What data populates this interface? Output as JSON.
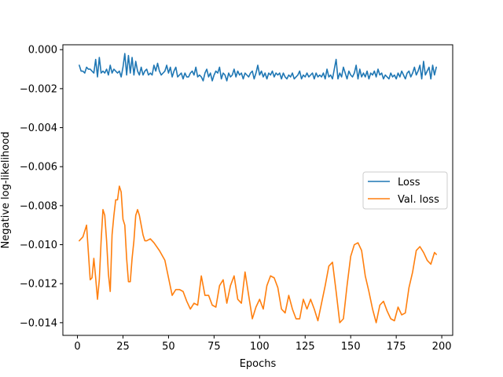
{
  "chart_data": {
    "type": "line",
    "xlabel": "Epochs",
    "ylabel": "Negative log-likelihood",
    "xlim": [
      -8,
      206
    ],
    "ylim": [
      -0.01465,
      0.00025
    ],
    "xticks": [
      0,
      25,
      50,
      75,
      100,
      125,
      150,
      175,
      200
    ],
    "xtick_labels": [
      "0",
      "25",
      "50",
      "75",
      "100",
      "125",
      "150",
      "175",
      "200"
    ],
    "yticks": [
      0.0,
      -0.002,
      -0.004,
      -0.006,
      -0.008,
      -0.01,
      -0.012,
      -0.014
    ],
    "ytick_labels": [
      "0.000",
      "−0.002",
      "−0.004",
      "−0.006",
      "−0.008",
      "−0.010",
      "−0.012",
      "−0.014"
    ],
    "grid": false,
    "legend": {
      "position": "center-right"
    },
    "series": [
      {
        "name": "Loss",
        "color": "#1f77b4",
        "x": [
          1,
          2,
          3,
          4,
          5,
          6,
          7,
          8,
          9,
          10,
          11,
          12,
          13,
          14,
          15,
          16,
          17,
          18,
          19,
          20,
          21,
          22,
          23,
          24,
          25,
          26,
          27,
          28,
          29,
          30,
          31,
          32,
          33,
          34,
          35,
          36,
          37,
          38,
          39,
          40,
          41,
          42,
          43,
          44,
          45,
          46,
          47,
          48,
          49,
          50,
          51,
          52,
          53,
          54,
          55,
          56,
          57,
          58,
          59,
          60,
          61,
          62,
          63,
          64,
          65,
          66,
          67,
          68,
          69,
          70,
          71,
          72,
          73,
          74,
          75,
          76,
          77,
          78,
          79,
          80,
          81,
          82,
          83,
          84,
          85,
          86,
          87,
          88,
          89,
          90,
          91,
          92,
          93,
          94,
          95,
          96,
          97,
          98,
          99,
          100,
          101,
          102,
          103,
          104,
          105,
          106,
          107,
          108,
          109,
          110,
          111,
          112,
          113,
          114,
          115,
          116,
          117,
          118,
          119,
          120,
          121,
          122,
          123,
          124,
          125,
          126,
          127,
          128,
          129,
          130,
          131,
          132,
          133,
          134,
          135,
          136,
          137,
          138,
          139,
          140,
          141,
          142,
          143,
          144,
          145,
          146,
          147,
          148,
          149,
          150,
          151,
          152,
          153,
          154,
          155,
          156,
          157,
          158,
          159,
          160,
          161,
          162,
          163,
          164,
          165,
          166,
          167,
          168,
          169,
          170,
          171,
          172,
          173,
          174,
          175,
          176,
          177,
          178,
          179,
          180,
          181,
          182,
          183,
          184,
          185,
          186,
          187,
          188,
          189,
          190,
          191,
          192,
          193,
          194,
          195,
          196,
          197
        ],
        "values": [
          -0.0008,
          -0.0011,
          -0.0011,
          -0.0012,
          -0.0009,
          -0.001,
          -0.001,
          -0.0011,
          -0.0012,
          -0.0005,
          -0.0014,
          -0.0004,
          -0.0012,
          -0.0011,
          -0.0012,
          -0.001,
          -0.0013,
          -0.0008,
          -0.0012,
          -0.001,
          -0.0011,
          -0.0012,
          -0.0011,
          -0.0014,
          -0.0009,
          -0.0002,
          -0.0013,
          -0.0003,
          -0.0012,
          -0.0004,
          -0.0013,
          -0.0006,
          -0.0011,
          -0.0013,
          -0.0009,
          -0.0013,
          -0.0011,
          -0.001,
          -0.0013,
          -0.0012,
          -0.0013,
          -0.0008,
          -0.0011,
          -0.0007,
          -0.0011,
          -0.0013,
          -0.0012,
          -0.0011,
          -0.0008,
          -0.0012,
          -0.0009,
          -0.0014,
          -0.0011,
          -0.0009,
          -0.0014,
          -0.0013,
          -0.0012,
          -0.0015,
          -0.0012,
          -0.0014,
          -0.0014,
          -0.0012,
          -0.0011,
          -0.0013,
          -0.0009,
          -0.0014,
          -0.0013,
          -0.0014,
          -0.0016,
          -0.0012,
          -0.001,
          -0.0014,
          -0.0012,
          -0.0016,
          -0.0013,
          -0.0011,
          -0.0012,
          -0.0009,
          -0.0015,
          -0.0012,
          -0.0013,
          -0.0016,
          -0.0012,
          -0.0014,
          -0.0013,
          -0.001,
          -0.0014,
          -0.0011,
          -0.0013,
          -0.0012,
          -0.0015,
          -0.0012,
          -0.0013,
          -0.0014,
          -0.0012,
          -0.0011,
          -0.0015,
          -0.0012,
          -0.0008,
          -0.0013,
          -0.0011,
          -0.0014,
          -0.0012,
          -0.0015,
          -0.0012,
          -0.0013,
          -0.0011,
          -0.0014,
          -0.0012,
          -0.0013,
          -0.0012,
          -0.0015,
          -0.0012,
          -0.0014,
          -0.0015,
          -0.0013,
          -0.0014,
          -0.0012,
          -0.0015,
          -0.0014,
          -0.0013,
          -0.0011,
          -0.0015,
          -0.0013,
          -0.0014,
          -0.0012,
          -0.0014,
          -0.0013,
          -0.0012,
          -0.0015,
          -0.0012,
          -0.0014,
          -0.0013,
          -0.0014,
          -0.0012,
          -0.0015,
          -0.001,
          -0.0014,
          -0.0013,
          -0.0015,
          -0.001,
          -0.0005,
          -0.0015,
          -0.0012,
          -0.0014,
          -0.0009,
          -0.0012,
          -0.0015,
          -0.0011,
          -0.0013,
          -0.0014,
          -0.0012,
          -0.0008,
          -0.0015,
          -0.001,
          -0.0014,
          -0.0012,
          -0.0014,
          -0.0011,
          -0.0015,
          -0.0012,
          -0.0013,
          -0.0011,
          -0.0014,
          -0.001,
          -0.0013,
          -0.0012,
          -0.0015,
          -0.0013,
          -0.0014,
          -0.0015,
          -0.0012,
          -0.0014,
          -0.0013,
          -0.0015,
          -0.0012,
          -0.0014,
          -0.0011,
          -0.0013,
          -0.0015,
          -0.0012,
          -0.0011,
          -0.0014,
          -0.0012,
          -0.0009,
          -0.0013,
          -0.0011,
          -0.0008,
          -0.0015,
          -0.0006,
          -0.0013,
          -0.0011,
          -0.0009,
          -0.0015,
          -0.0008,
          -0.0013,
          -0.0009
        ]
      },
      {
        "name": "Val. loss",
        "color": "#ff7f0e",
        "x": [
          1,
          3,
          5,
          7,
          8,
          9,
          10,
          11,
          12,
          13,
          14,
          15,
          16,
          17,
          18,
          19,
          20,
          21,
          22,
          23,
          24,
          25,
          26,
          27,
          28,
          29,
          30,
          31,
          32,
          33,
          34,
          35,
          36,
          37,
          38,
          40,
          42,
          45,
          48,
          50,
          52,
          54,
          56,
          58,
          60,
          62,
          64,
          66,
          68,
          70,
          72,
          74,
          76,
          78,
          80,
          82,
          84,
          86,
          88,
          90,
          92,
          94,
          96,
          98,
          100,
          102,
          104,
          106,
          108,
          110,
          112,
          114,
          116,
          118,
          120,
          122,
          124,
          126,
          128,
          130,
          132,
          134,
          136,
          138,
          140,
          142,
          144,
          146,
          148,
          150,
          152,
          154,
          156,
          158,
          160,
          162,
          164,
          166,
          168,
          170,
          172,
          174,
          176,
          178,
          180,
          182,
          184,
          186,
          188,
          190,
          192,
          194,
          196,
          197
        ],
        "values": [
          -0.0098,
          -0.0096,
          -0.009,
          -0.0118,
          -0.0117,
          -0.0107,
          -0.0117,
          -0.0128,
          -0.0118,
          -0.0098,
          -0.0082,
          -0.0085,
          -0.0098,
          -0.0115,
          -0.0124,
          -0.0095,
          -0.0085,
          -0.0077,
          -0.0077,
          -0.007,
          -0.0073,
          -0.0087,
          -0.009,
          -0.0107,
          -0.0119,
          -0.0119,
          -0.0107,
          -0.0098,
          -0.0085,
          -0.0082,
          -0.0085,
          -0.009,
          -0.0095,
          -0.0098,
          -0.0098,
          -0.0097,
          -0.0099,
          -0.0103,
          -0.0108,
          -0.0117,
          -0.0126,
          -0.0123,
          -0.0123,
          -0.0124,
          -0.0129,
          -0.0133,
          -0.013,
          -0.0131,
          -0.0116,
          -0.0126,
          -0.0126,
          -0.0131,
          -0.0132,
          -0.0121,
          -0.0118,
          -0.013,
          -0.0121,
          -0.0116,
          -0.0128,
          -0.013,
          -0.0114,
          -0.0126,
          -0.0138,
          -0.0132,
          -0.0128,
          -0.0133,
          -0.0121,
          -0.0116,
          -0.0117,
          -0.0122,
          -0.0133,
          -0.0135,
          -0.0126,
          -0.0133,
          -0.0138,
          -0.0138,
          -0.0128,
          -0.0133,
          -0.0128,
          -0.0133,
          -0.0139,
          -0.013,
          -0.0121,
          -0.0111,
          -0.0109,
          -0.0124,
          -0.014,
          -0.0138,
          -0.0121,
          -0.0106,
          -0.01,
          -0.0099,
          -0.0103,
          -0.0116,
          -0.0124,
          -0.0133,
          -0.014,
          -0.0131,
          -0.0129,
          -0.0134,
          -0.0138,
          -0.0139,
          -0.0132,
          -0.0136,
          -0.0135,
          -0.0122,
          -0.0114,
          -0.0103,
          -0.0101,
          -0.0104,
          -0.0108,
          -0.011,
          -0.0104,
          -0.0105
        ]
      }
    ]
  }
}
